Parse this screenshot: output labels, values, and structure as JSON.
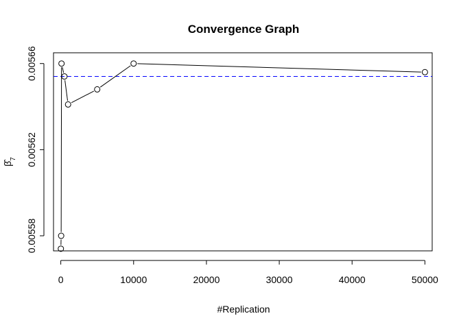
{
  "chart_data": {
    "type": "line",
    "title": "Convergence Graph",
    "xlabel": "#Replication",
    "ylabel": "β̂7",
    "ylabel_base": "β̂",
    "ylabel_sub": "7",
    "xlim": [
      -1000,
      51000
    ],
    "ylim": [
      0.005573,
      0.005665
    ],
    "x_ticks": [
      0,
      10000,
      20000,
      30000,
      40000,
      50000
    ],
    "x_tick_labels": [
      "0",
      "10000",
      "20000",
      "30000",
      "40000",
      "50000"
    ],
    "y_ticks": [
      0.00558,
      0.00562,
      0.00566
    ],
    "y_tick_labels": [
      "0.00558",
      "0.00562",
      "0.00566"
    ],
    "series": [
      {
        "x": [
          10,
          50,
          100,
          500,
          1000,
          5000,
          10000,
          50000
        ],
        "y": [
          0.005574,
          0.00558,
          0.00566,
          0.005654,
          0.005641,
          0.005648,
          0.00566,
          0.005656
        ]
      }
    ],
    "reference_line": {
      "y": 0.005654,
      "style": "dashed",
      "color": "#0000ff"
    },
    "grid": false,
    "legend": "none"
  }
}
